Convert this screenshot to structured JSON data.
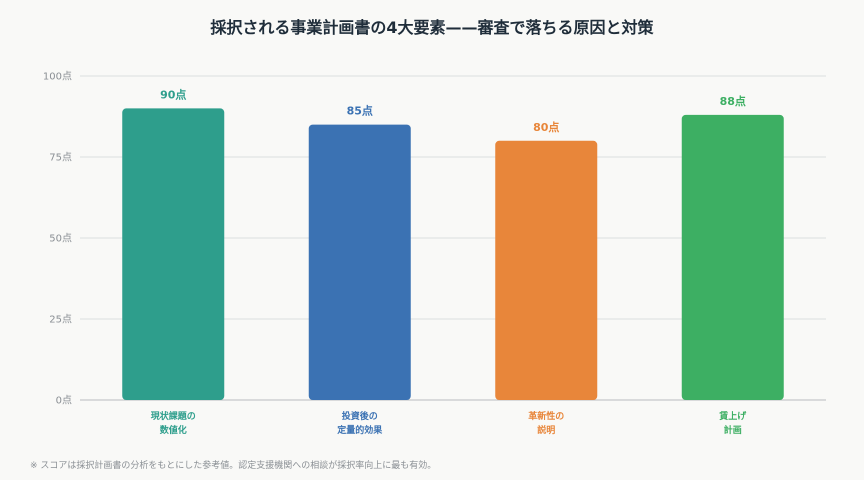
{
  "chart_data": {
    "type": "bar",
    "title": "採択される事業計画書の4大要素——審査で落ちる原因と対策",
    "categories": [
      "現状課題の\n数値化",
      "投資後の\n定量的効果",
      "革新性の\n説明",
      "賃上げ\n計画"
    ],
    "values": [
      90,
      85,
      80,
      88
    ],
    "value_labels": [
      "90点",
      "85点",
      "80点",
      "88点"
    ],
    "bar_colors": [
      "#2e9e8c",
      "#3b72b3",
      "#e8863a",
      "#3daf63"
    ],
    "ylim": [
      0,
      100
    ],
    "yticks": [
      0,
      25,
      50,
      75,
      100
    ],
    "ytick_labels": [
      "0点",
      "25点",
      "50点",
      "75点",
      "100点"
    ],
    "xlabel": "",
    "ylabel": "",
    "grid": true,
    "legend": "none"
  },
  "footnote": "※ スコアは採択計画書の分析をもとにした参考値。認定支援機関への相談が採択率向上に最も有効。"
}
